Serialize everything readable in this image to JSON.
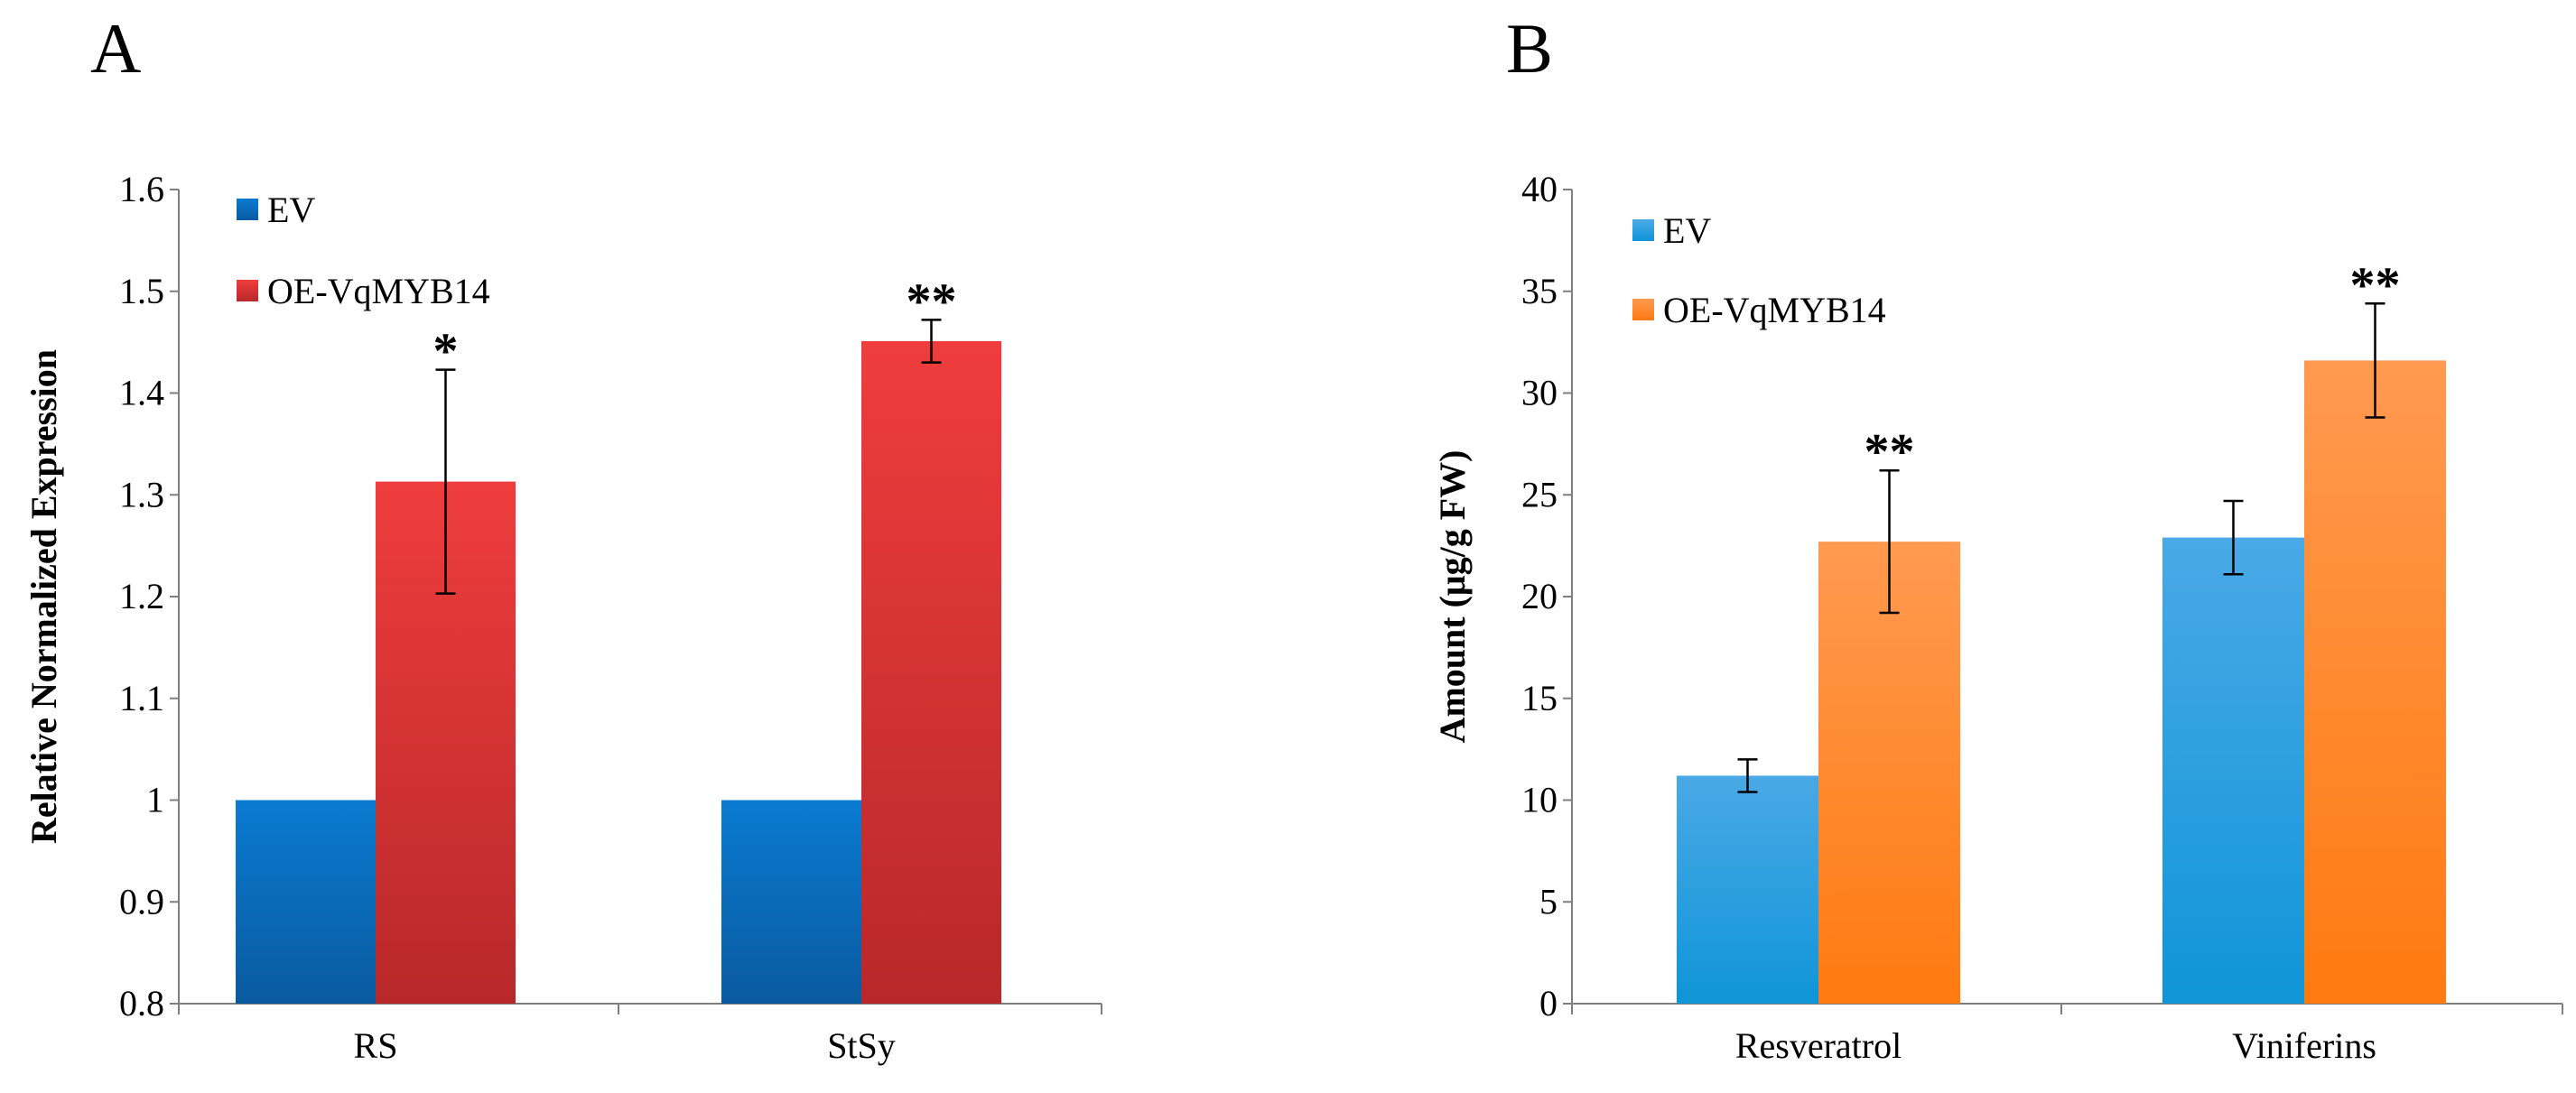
{
  "chart_data": [
    {
      "type": "bar",
      "panel_label": "A",
      "title": "",
      "xlabel": "",
      "ylabel": "Relative Normalized Expression",
      "ylim": [
        0.8,
        1.6
      ],
      "yticks": [
        0.8,
        0.9,
        1,
        1.1,
        1.2,
        1.3,
        1.4,
        1.5,
        1.6
      ],
      "ytick_labels": [
        "0.8",
        "0.9",
        "1",
        "1.1",
        "1.2",
        "1.3",
        "1.4",
        "1.5",
        "1.6"
      ],
      "categories": [
        "RS",
        "StSy"
      ],
      "grid": false,
      "legend_position": "top-left",
      "series": [
        {
          "name": "EV",
          "values": [
            1.0,
            1.0
          ],
          "errors": [
            null,
            null
          ],
          "color_top": "#0a7bd1",
          "color_bottom": "#0a5aa0"
        },
        {
          "name": "OE-VqMYB14",
          "values": [
            1.313,
            1.451
          ],
          "errors": [
            0.11,
            0.021
          ],
          "color_top": "#ef3d3d",
          "color_bottom": "#b8282a"
        }
      ],
      "annotations": [
        {
          "category": "RS",
          "series": "OE-VqMYB14",
          "text": "*"
        },
        {
          "category": "StSy",
          "series": "OE-VqMYB14",
          "text": "**"
        }
      ]
    },
    {
      "type": "bar",
      "panel_label": "B",
      "title": "",
      "xlabel": "",
      "ylabel": "Amount (μg/g FW)",
      "ylim": [
        0,
        40
      ],
      "yticks": [
        0,
        5,
        10,
        15,
        20,
        25,
        30,
        35,
        40
      ],
      "ytick_labels": [
        "0",
        "5",
        "10",
        "15",
        "20",
        "25",
        "30",
        "35",
        "40"
      ],
      "categories": [
        "Resveratrol",
        "Viniferins"
      ],
      "grid": false,
      "legend_position": "top-left",
      "series": [
        {
          "name": "EV",
          "values": [
            11.2,
            22.9
          ],
          "errors": [
            0.8,
            1.8
          ],
          "color_top": "#4aa9e6",
          "color_bottom": "#0f95d8"
        },
        {
          "name": "OE-VqMYB14",
          "values": [
            22.7,
            31.6
          ],
          "errors": [
            3.5,
            2.8
          ],
          "color_top": "#ff9a50",
          "color_bottom": "#ff7a10"
        }
      ],
      "annotations": [
        {
          "category": "Resveratrol",
          "series": "OE-VqMYB14",
          "text": "**"
        },
        {
          "category": "Viniferins",
          "series": "OE-VqMYB14",
          "text": "**"
        }
      ]
    }
  ]
}
